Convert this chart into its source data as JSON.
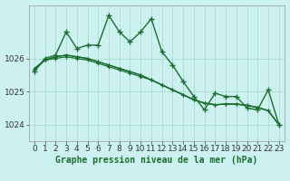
{
  "title": "Graphe pression niveau de la mer (hPa)",
  "background_color": "#cdf0f0",
  "grid_color": "#aaddcc",
  "line_color": "#1a6e2e",
  "xlim": [
    -0.5,
    23.5
  ],
  "ylim": [
    1023.5,
    1027.6
  ],
  "yticks": [
    1024,
    1025,
    1026
  ],
  "xticks": [
    0,
    1,
    2,
    3,
    4,
    5,
    6,
    7,
    8,
    9,
    10,
    11,
    12,
    13,
    14,
    15,
    16,
    17,
    18,
    19,
    20,
    21,
    22,
    23
  ],
  "series_spiky": [
    1025.6,
    1026.0,
    1026.1,
    1026.8,
    1026.3,
    1026.4,
    1026.4,
    1027.3,
    1026.8,
    1026.5,
    1026.8,
    1027.2,
    1026.2,
    1025.8,
    1025.3,
    1024.85,
    1024.45,
    1024.95,
    1024.85,
    1024.85,
    1024.5,
    1024.45,
    1025.05,
    1024.0
  ],
  "series_smooth1": [
    1025.7,
    1025.95,
    1026.0,
    1026.05,
    1026.0,
    1025.95,
    1025.85,
    1025.75,
    1025.65,
    1025.55,
    1025.45,
    1025.35,
    1025.2,
    1025.05,
    1024.9,
    1024.75,
    1024.65,
    1024.6,
    1024.62,
    1024.62,
    1024.58,
    1024.52,
    1024.42,
    1024.0
  ],
  "series_smooth2": [
    1025.65,
    1025.95,
    1026.05,
    1026.1,
    1026.05,
    1026.0,
    1025.9,
    1025.8,
    1025.7,
    1025.6,
    1025.5,
    1025.35,
    1025.2,
    1025.05,
    1024.9,
    1024.75,
    1024.65,
    1024.6,
    1024.62,
    1024.62,
    1024.58,
    1024.52,
    1024.42,
    1024.0
  ],
  "series_smooth3": [
    1025.65,
    1025.95,
    1026.05,
    1026.1,
    1026.05,
    1026.0,
    1025.9,
    1025.8,
    1025.7,
    1025.6,
    1025.5,
    1025.35,
    1025.2,
    1025.05,
    1024.9,
    1024.75,
    1024.65,
    1024.6,
    1024.62,
    1024.62,
    1024.58,
    1024.52,
    1024.42,
    1024.0
  ],
  "marker": "+",
  "marker_size_spiky": 4,
  "marker_size_smooth": 3,
  "linewidth_spiky": 1.0,
  "linewidth_smooth": 0.9,
  "xlabel_fontsize": 7,
  "tick_fontsize": 6.5
}
